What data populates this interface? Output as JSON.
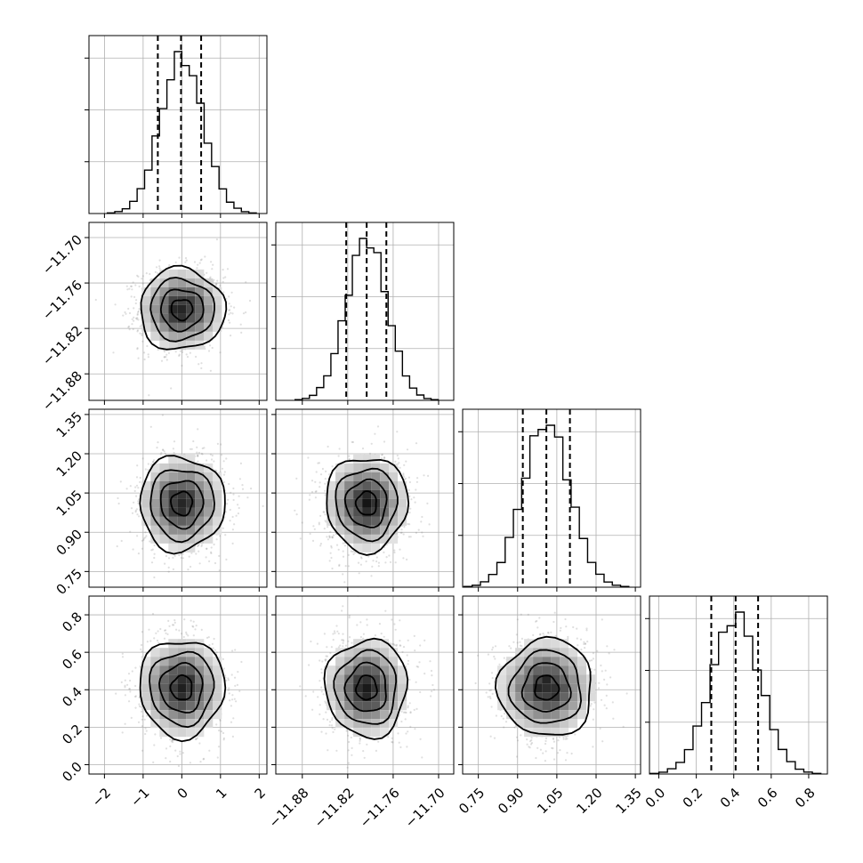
{
  "chart_data": {
    "type": "corner",
    "parameters": [
      {
        "index": 0,
        "mean": 0.0,
        "sd": 0.55,
        "range": [
          -2.4,
          2.2
        ],
        "ticks": [
          -2,
          -1,
          0,
          1,
          2
        ],
        "tick_labels": [
          "−2",
          "−1",
          "0",
          "1",
          "2"
        ],
        "quantiles": [
          -0.62,
          -0.02,
          0.5
        ]
      },
      {
        "index": 1,
        "mean": -11.795,
        "sd": 0.027,
        "range": [
          -11.915,
          -11.68
        ],
        "ticks": [
          -11.88,
          -11.82,
          -11.76,
          -11.7
        ],
        "tick_labels": [
          "−11.88",
          "−11.82",
          "−11.76",
          "−11.70"
        ],
        "quantiles": [
          -11.822,
          -11.795,
          -11.769
        ]
      },
      {
        "index": 2,
        "mean": 1.01,
        "sd": 0.09,
        "range": [
          0.69,
          1.37
        ],
        "ticks": [
          0.75,
          0.9,
          1.05,
          1.2,
          1.35
        ],
        "tick_labels": [
          "0.75",
          "0.90",
          "1.05",
          "1.20",
          "1.35"
        ],
        "quantiles": [
          0.92,
          1.01,
          1.1
        ]
      },
      {
        "index": 3,
        "mean": 0.41,
        "sd": 0.13,
        "range": [
          -0.05,
          0.9
        ],
        "ticks": [
          0.0,
          0.2,
          0.4,
          0.6,
          0.8
        ],
        "tick_labels": [
          "0.0",
          "0.2",
          "0.4",
          "0.6",
          "0.8"
        ],
        "quantiles": [
          0.28,
          0.41,
          0.53
        ]
      }
    ],
    "grid": true,
    "contour_levels_sigma": [
      0.5,
      1.0,
      1.5,
      2.0
    ],
    "colors": {
      "line": "#000000",
      "grid": "#b0b0b0",
      "points": "#7f7f7f"
    }
  }
}
